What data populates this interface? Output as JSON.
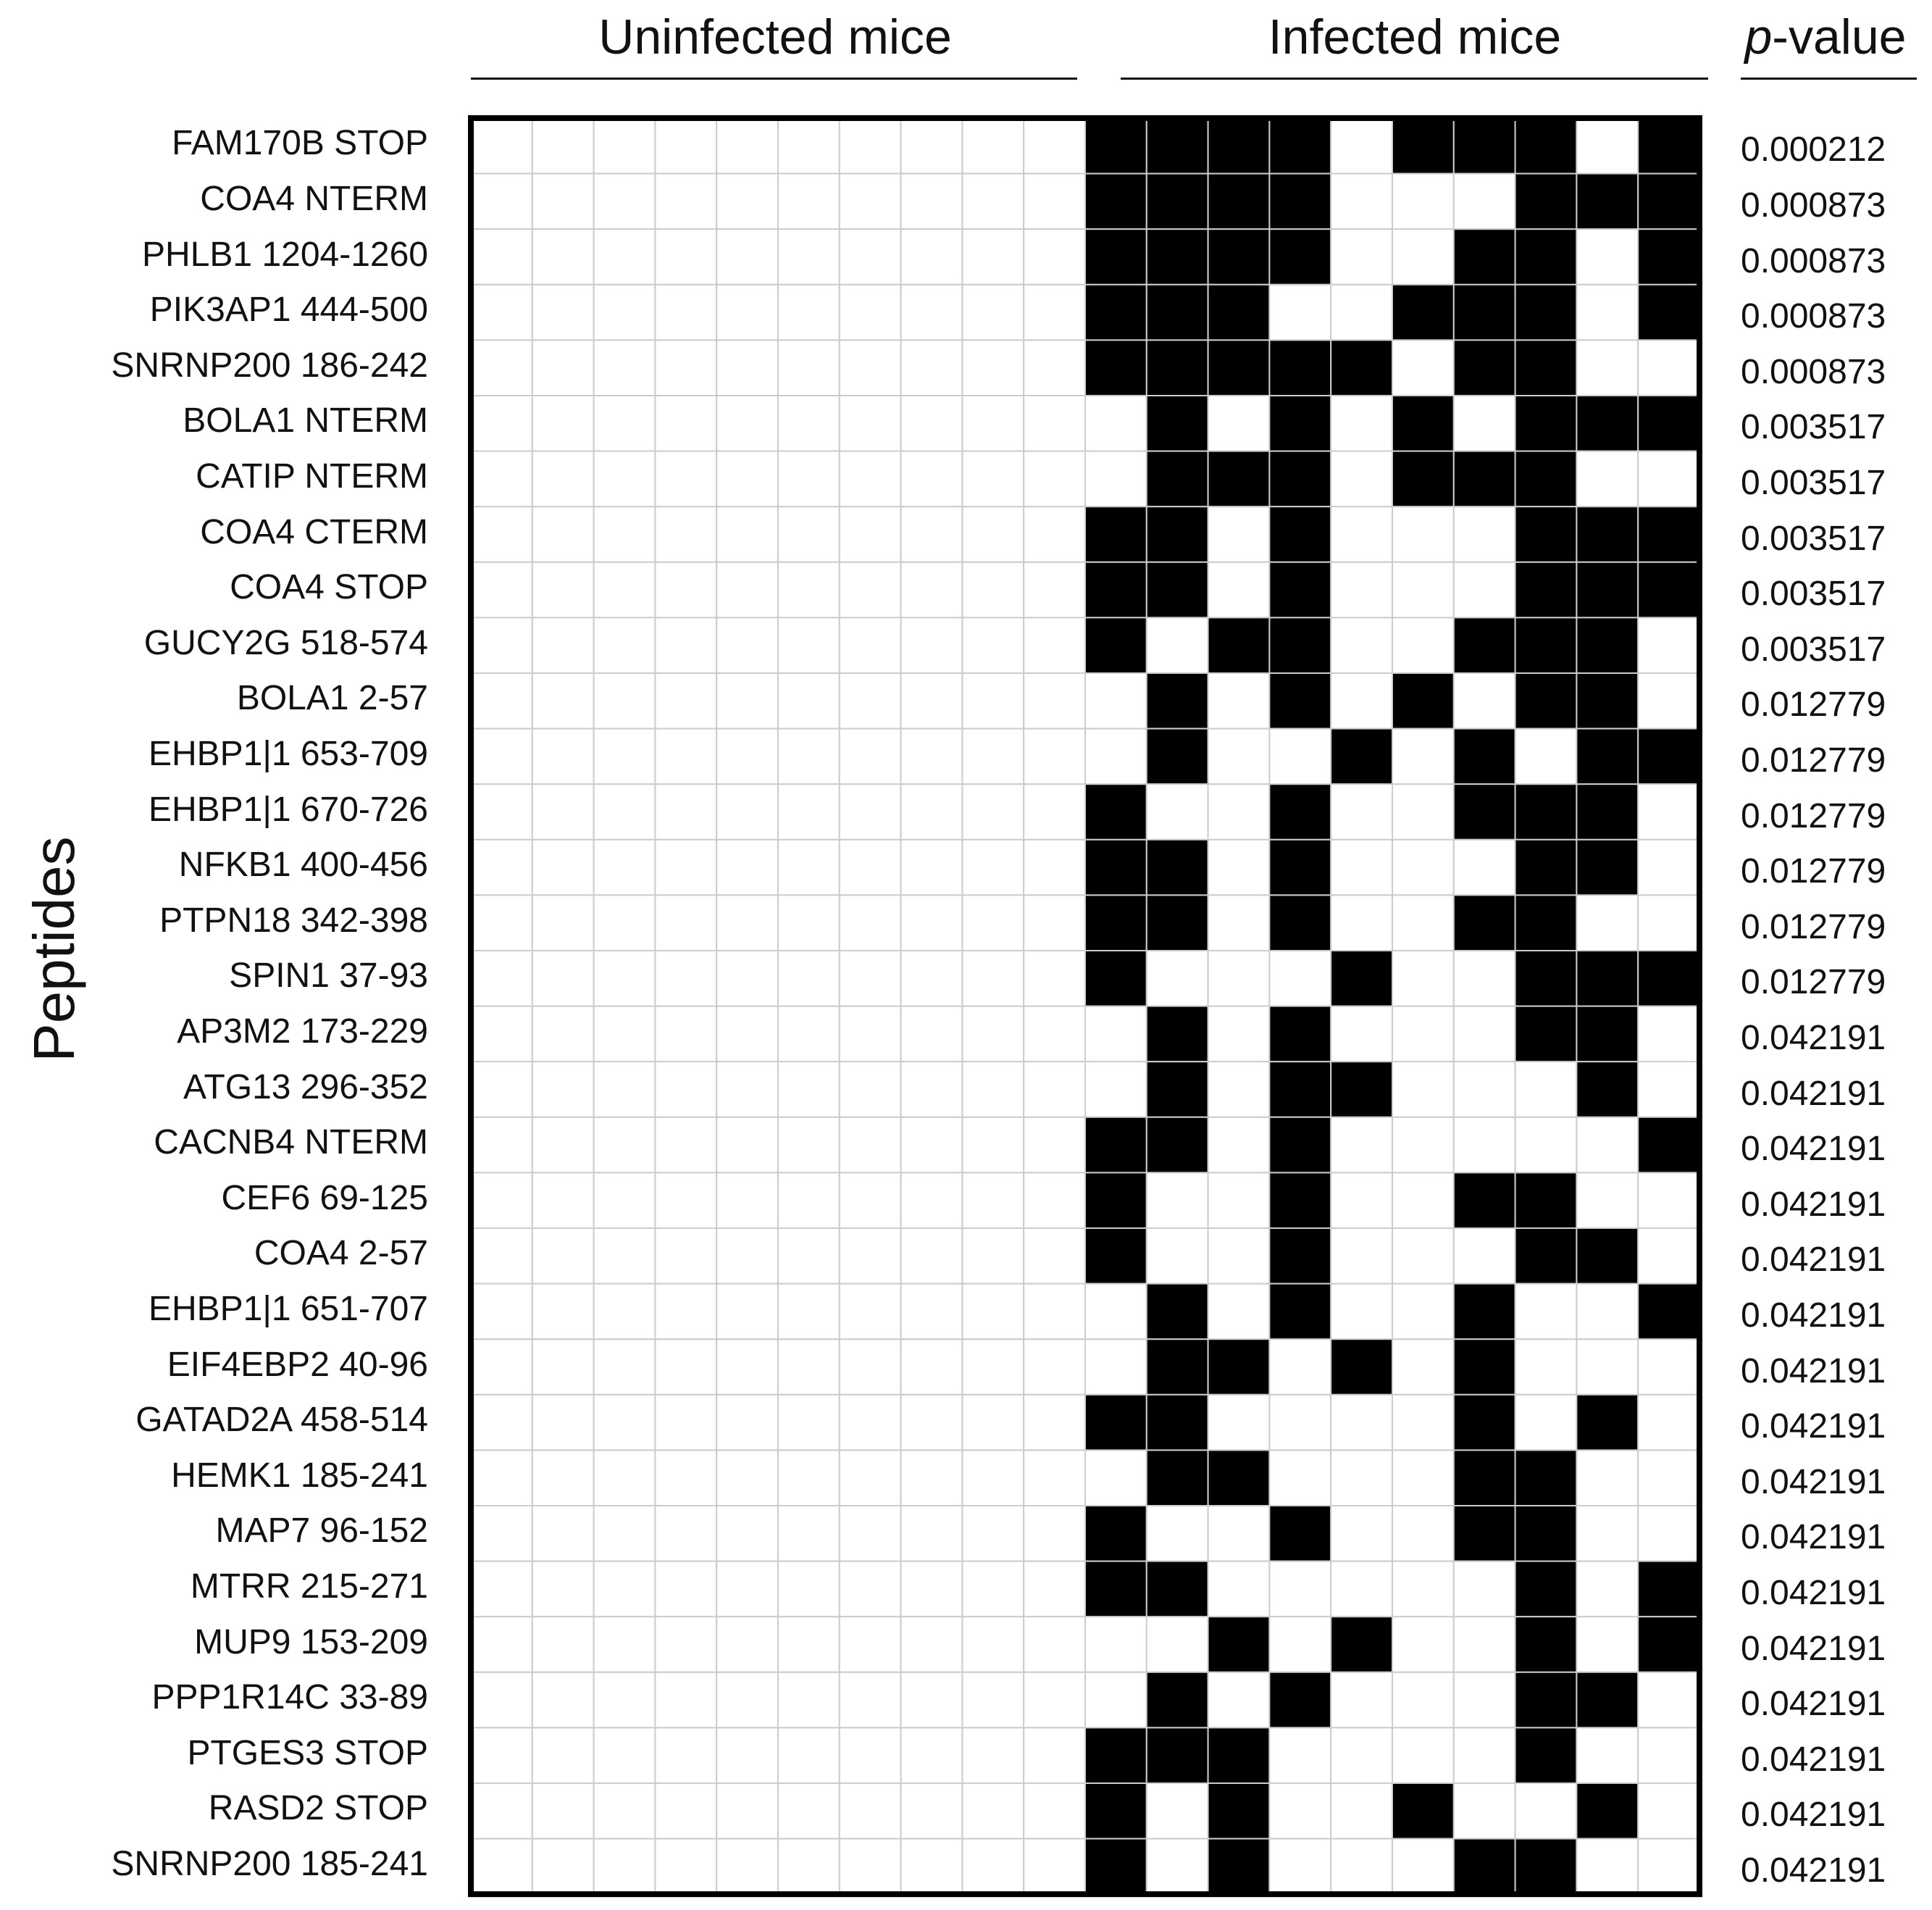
{
  "chart_data": {
    "type": "heatmap",
    "title": "",
    "ylabel": "Peptides",
    "groups": [
      {
        "name": "Uninfected mice",
        "n_columns": 10
      },
      {
        "name": "Infected mice",
        "n_columns": 10
      }
    ],
    "pvalue_header": {
      "italic": "p",
      "rest": "-value"
    },
    "colors": {
      "present": "#000000",
      "absent": "#ffffff",
      "gridline": "#cccccc",
      "border": "#000000"
    },
    "rows": [
      {
        "label": "FAM170B STOP",
        "p": "0.000212",
        "uninfected": [
          0,
          0,
          0,
          0,
          0,
          0,
          0,
          0,
          0,
          0
        ],
        "infected": [
          1,
          1,
          1,
          1,
          0,
          1,
          1,
          1,
          0,
          1
        ]
      },
      {
        "label": "COA4 NTERM",
        "p": "0.000873",
        "uninfected": [
          0,
          0,
          0,
          0,
          0,
          0,
          0,
          0,
          0,
          0
        ],
        "infected": [
          1,
          1,
          1,
          1,
          0,
          0,
          0,
          1,
          1,
          1
        ]
      },
      {
        "label": "PHLB1 1204-1260",
        "p": "0.000873",
        "uninfected": [
          0,
          0,
          0,
          0,
          0,
          0,
          0,
          0,
          0,
          0
        ],
        "infected": [
          1,
          1,
          1,
          1,
          0,
          0,
          1,
          1,
          0,
          1
        ]
      },
      {
        "label": "PIK3AP1 444-500",
        "p": "0.000873",
        "uninfected": [
          0,
          0,
          0,
          0,
          0,
          0,
          0,
          0,
          0,
          0
        ],
        "infected": [
          1,
          1,
          1,
          0,
          0,
          1,
          1,
          1,
          0,
          1
        ]
      },
      {
        "label": "SNRNP200 186-242",
        "p": "0.000873",
        "uninfected": [
          0,
          0,
          0,
          0,
          0,
          0,
          0,
          0,
          0,
          0
        ],
        "infected": [
          1,
          1,
          1,
          1,
          1,
          0,
          1,
          1,
          0,
          0
        ]
      },
      {
        "label": "BOLA1 NTERM",
        "p": "0.003517",
        "uninfected": [
          0,
          0,
          0,
          0,
          0,
          0,
          0,
          0,
          0,
          0
        ],
        "infected": [
          0,
          1,
          0,
          1,
          0,
          1,
          0,
          1,
          1,
          1
        ]
      },
      {
        "label": "CATIP NTERM",
        "p": "0.003517",
        "uninfected": [
          0,
          0,
          0,
          0,
          0,
          0,
          0,
          0,
          0,
          0
        ],
        "infected": [
          0,
          1,
          1,
          1,
          0,
          1,
          1,
          1,
          0,
          0
        ]
      },
      {
        "label": "COA4 CTERM",
        "p": "0.003517",
        "uninfected": [
          0,
          0,
          0,
          0,
          0,
          0,
          0,
          0,
          0,
          0
        ],
        "infected": [
          1,
          1,
          0,
          1,
          0,
          0,
          0,
          1,
          1,
          1
        ]
      },
      {
        "label": "COA4 STOP",
        "p": "0.003517",
        "uninfected": [
          0,
          0,
          0,
          0,
          0,
          0,
          0,
          0,
          0,
          0
        ],
        "infected": [
          1,
          1,
          0,
          1,
          0,
          0,
          0,
          1,
          1,
          1
        ]
      },
      {
        "label": "GUCY2G 518-574",
        "p": "0.003517",
        "uninfected": [
          0,
          0,
          0,
          0,
          0,
          0,
          0,
          0,
          0,
          0
        ],
        "infected": [
          1,
          0,
          1,
          1,
          0,
          0,
          1,
          1,
          1,
          0
        ]
      },
      {
        "label": "BOLA1 2-57",
        "p": "0.012779",
        "uninfected": [
          0,
          0,
          0,
          0,
          0,
          0,
          0,
          0,
          0,
          0
        ],
        "infected": [
          0,
          1,
          0,
          1,
          0,
          1,
          0,
          1,
          1,
          0
        ]
      },
      {
        "label": "EHBP1|1 653-709",
        "p": "0.012779",
        "uninfected": [
          0,
          0,
          0,
          0,
          0,
          0,
          0,
          0,
          0,
          0
        ],
        "infected": [
          0,
          1,
          0,
          0,
          1,
          0,
          1,
          0,
          1,
          1
        ]
      },
      {
        "label": "EHBP1|1 670-726",
        "p": "0.012779",
        "uninfected": [
          0,
          0,
          0,
          0,
          0,
          0,
          0,
          0,
          0,
          0
        ],
        "infected": [
          1,
          0,
          0,
          1,
          0,
          0,
          1,
          1,
          1,
          0
        ]
      },
      {
        "label": "NFKB1 400-456",
        "p": "0.012779",
        "uninfected": [
          0,
          0,
          0,
          0,
          0,
          0,
          0,
          0,
          0,
          0
        ],
        "infected": [
          1,
          1,
          0,
          1,
          0,
          0,
          0,
          1,
          1,
          0
        ]
      },
      {
        "label": "PTPN18 342-398",
        "p": "0.012779",
        "uninfected": [
          0,
          0,
          0,
          0,
          0,
          0,
          0,
          0,
          0,
          0
        ],
        "infected": [
          1,
          1,
          0,
          1,
          0,
          0,
          1,
          1,
          0,
          0
        ]
      },
      {
        "label": "SPIN1 37-93",
        "p": "0.012779",
        "uninfected": [
          0,
          0,
          0,
          0,
          0,
          0,
          0,
          0,
          0,
          0
        ],
        "infected": [
          1,
          0,
          0,
          0,
          1,
          0,
          0,
          1,
          1,
          1
        ]
      },
      {
        "label": "AP3M2 173-229",
        "p": "0.042191",
        "uninfected": [
          0,
          0,
          0,
          0,
          0,
          0,
          0,
          0,
          0,
          0
        ],
        "infected": [
          0,
          1,
          0,
          1,
          0,
          0,
          0,
          1,
          1,
          0
        ]
      },
      {
        "label": "ATG13 296-352",
        "p": "0.042191",
        "uninfected": [
          0,
          0,
          0,
          0,
          0,
          0,
          0,
          0,
          0,
          0
        ],
        "infected": [
          0,
          1,
          0,
          1,
          1,
          0,
          0,
          0,
          1,
          0
        ]
      },
      {
        "label": "CACNB4 NTERM",
        "p": "0.042191",
        "uninfected": [
          0,
          0,
          0,
          0,
          0,
          0,
          0,
          0,
          0,
          0
        ],
        "infected": [
          1,
          1,
          0,
          1,
          0,
          0,
          0,
          0,
          0,
          1
        ]
      },
      {
        "label": "CEF6 69-125",
        "p": "0.042191",
        "uninfected": [
          0,
          0,
          0,
          0,
          0,
          0,
          0,
          0,
          0,
          0
        ],
        "infected": [
          1,
          0,
          0,
          1,
          0,
          0,
          1,
          1,
          0,
          0
        ]
      },
      {
        "label": "COA4 2-57",
        "p": "0.042191",
        "uninfected": [
          0,
          0,
          0,
          0,
          0,
          0,
          0,
          0,
          0,
          0
        ],
        "infected": [
          1,
          0,
          0,
          1,
          0,
          0,
          0,
          1,
          1,
          0
        ]
      },
      {
        "label": "EHBP1|1 651-707",
        "p": "0.042191",
        "uninfected": [
          0,
          0,
          0,
          0,
          0,
          0,
          0,
          0,
          0,
          0
        ],
        "infected": [
          0,
          1,
          0,
          1,
          0,
          0,
          1,
          0,
          0,
          1
        ]
      },
      {
        "label": "EIF4EBP2 40-96",
        "p": "0.042191",
        "uninfected": [
          0,
          0,
          0,
          0,
          0,
          0,
          0,
          0,
          0,
          0
        ],
        "infected": [
          0,
          1,
          1,
          0,
          1,
          0,
          1,
          0,
          0,
          0
        ]
      },
      {
        "label": "GATAD2A 458-514",
        "p": "0.042191",
        "uninfected": [
          0,
          0,
          0,
          0,
          0,
          0,
          0,
          0,
          0,
          0
        ],
        "infected": [
          1,
          1,
          0,
          0,
          0,
          0,
          1,
          0,
          1,
          0
        ]
      },
      {
        "label": "HEMK1 185-241",
        "p": "0.042191",
        "uninfected": [
          0,
          0,
          0,
          0,
          0,
          0,
          0,
          0,
          0,
          0
        ],
        "infected": [
          0,
          1,
          1,
          0,
          0,
          0,
          1,
          1,
          0,
          0
        ]
      },
      {
        "label": "MAP7 96-152",
        "p": "0.042191",
        "uninfected": [
          0,
          0,
          0,
          0,
          0,
          0,
          0,
          0,
          0,
          0
        ],
        "infected": [
          1,
          0,
          0,
          1,
          0,
          0,
          1,
          1,
          0,
          0
        ]
      },
      {
        "label": "MTRR 215-271",
        "p": "0.042191",
        "uninfected": [
          0,
          0,
          0,
          0,
          0,
          0,
          0,
          0,
          0,
          0
        ],
        "infected": [
          1,
          1,
          0,
          0,
          0,
          0,
          0,
          1,
          0,
          1
        ]
      },
      {
        "label": "MUP9 153-209",
        "p": "0.042191",
        "uninfected": [
          0,
          0,
          0,
          0,
          0,
          0,
          0,
          0,
          0,
          0
        ],
        "infected": [
          0,
          0,
          1,
          0,
          1,
          0,
          0,
          1,
          0,
          1
        ]
      },
      {
        "label": "PPP1R14C 33-89",
        "p": "0.042191",
        "uninfected": [
          0,
          0,
          0,
          0,
          0,
          0,
          0,
          0,
          0,
          0
        ],
        "infected": [
          0,
          1,
          0,
          1,
          0,
          0,
          0,
          1,
          1,
          0
        ]
      },
      {
        "label": "PTGES3 STOP",
        "p": "0.042191",
        "uninfected": [
          0,
          0,
          0,
          0,
          0,
          0,
          0,
          0,
          0,
          0
        ],
        "infected": [
          1,
          1,
          1,
          0,
          0,
          0,
          0,
          1,
          0,
          0
        ]
      },
      {
        "label": "RASD2 STOP",
        "p": "0.042191",
        "uninfected": [
          0,
          0,
          0,
          0,
          0,
          0,
          0,
          0,
          0,
          0
        ],
        "infected": [
          1,
          0,
          1,
          0,
          0,
          1,
          0,
          0,
          1,
          0
        ]
      },
      {
        "label": "SNRNP200 185-241",
        "p": "0.042191",
        "uninfected": [
          0,
          0,
          0,
          0,
          0,
          0,
          0,
          0,
          0,
          0
        ],
        "infected": [
          1,
          0,
          1,
          0,
          0,
          0,
          1,
          1,
          0,
          0
        ]
      }
    ]
  }
}
